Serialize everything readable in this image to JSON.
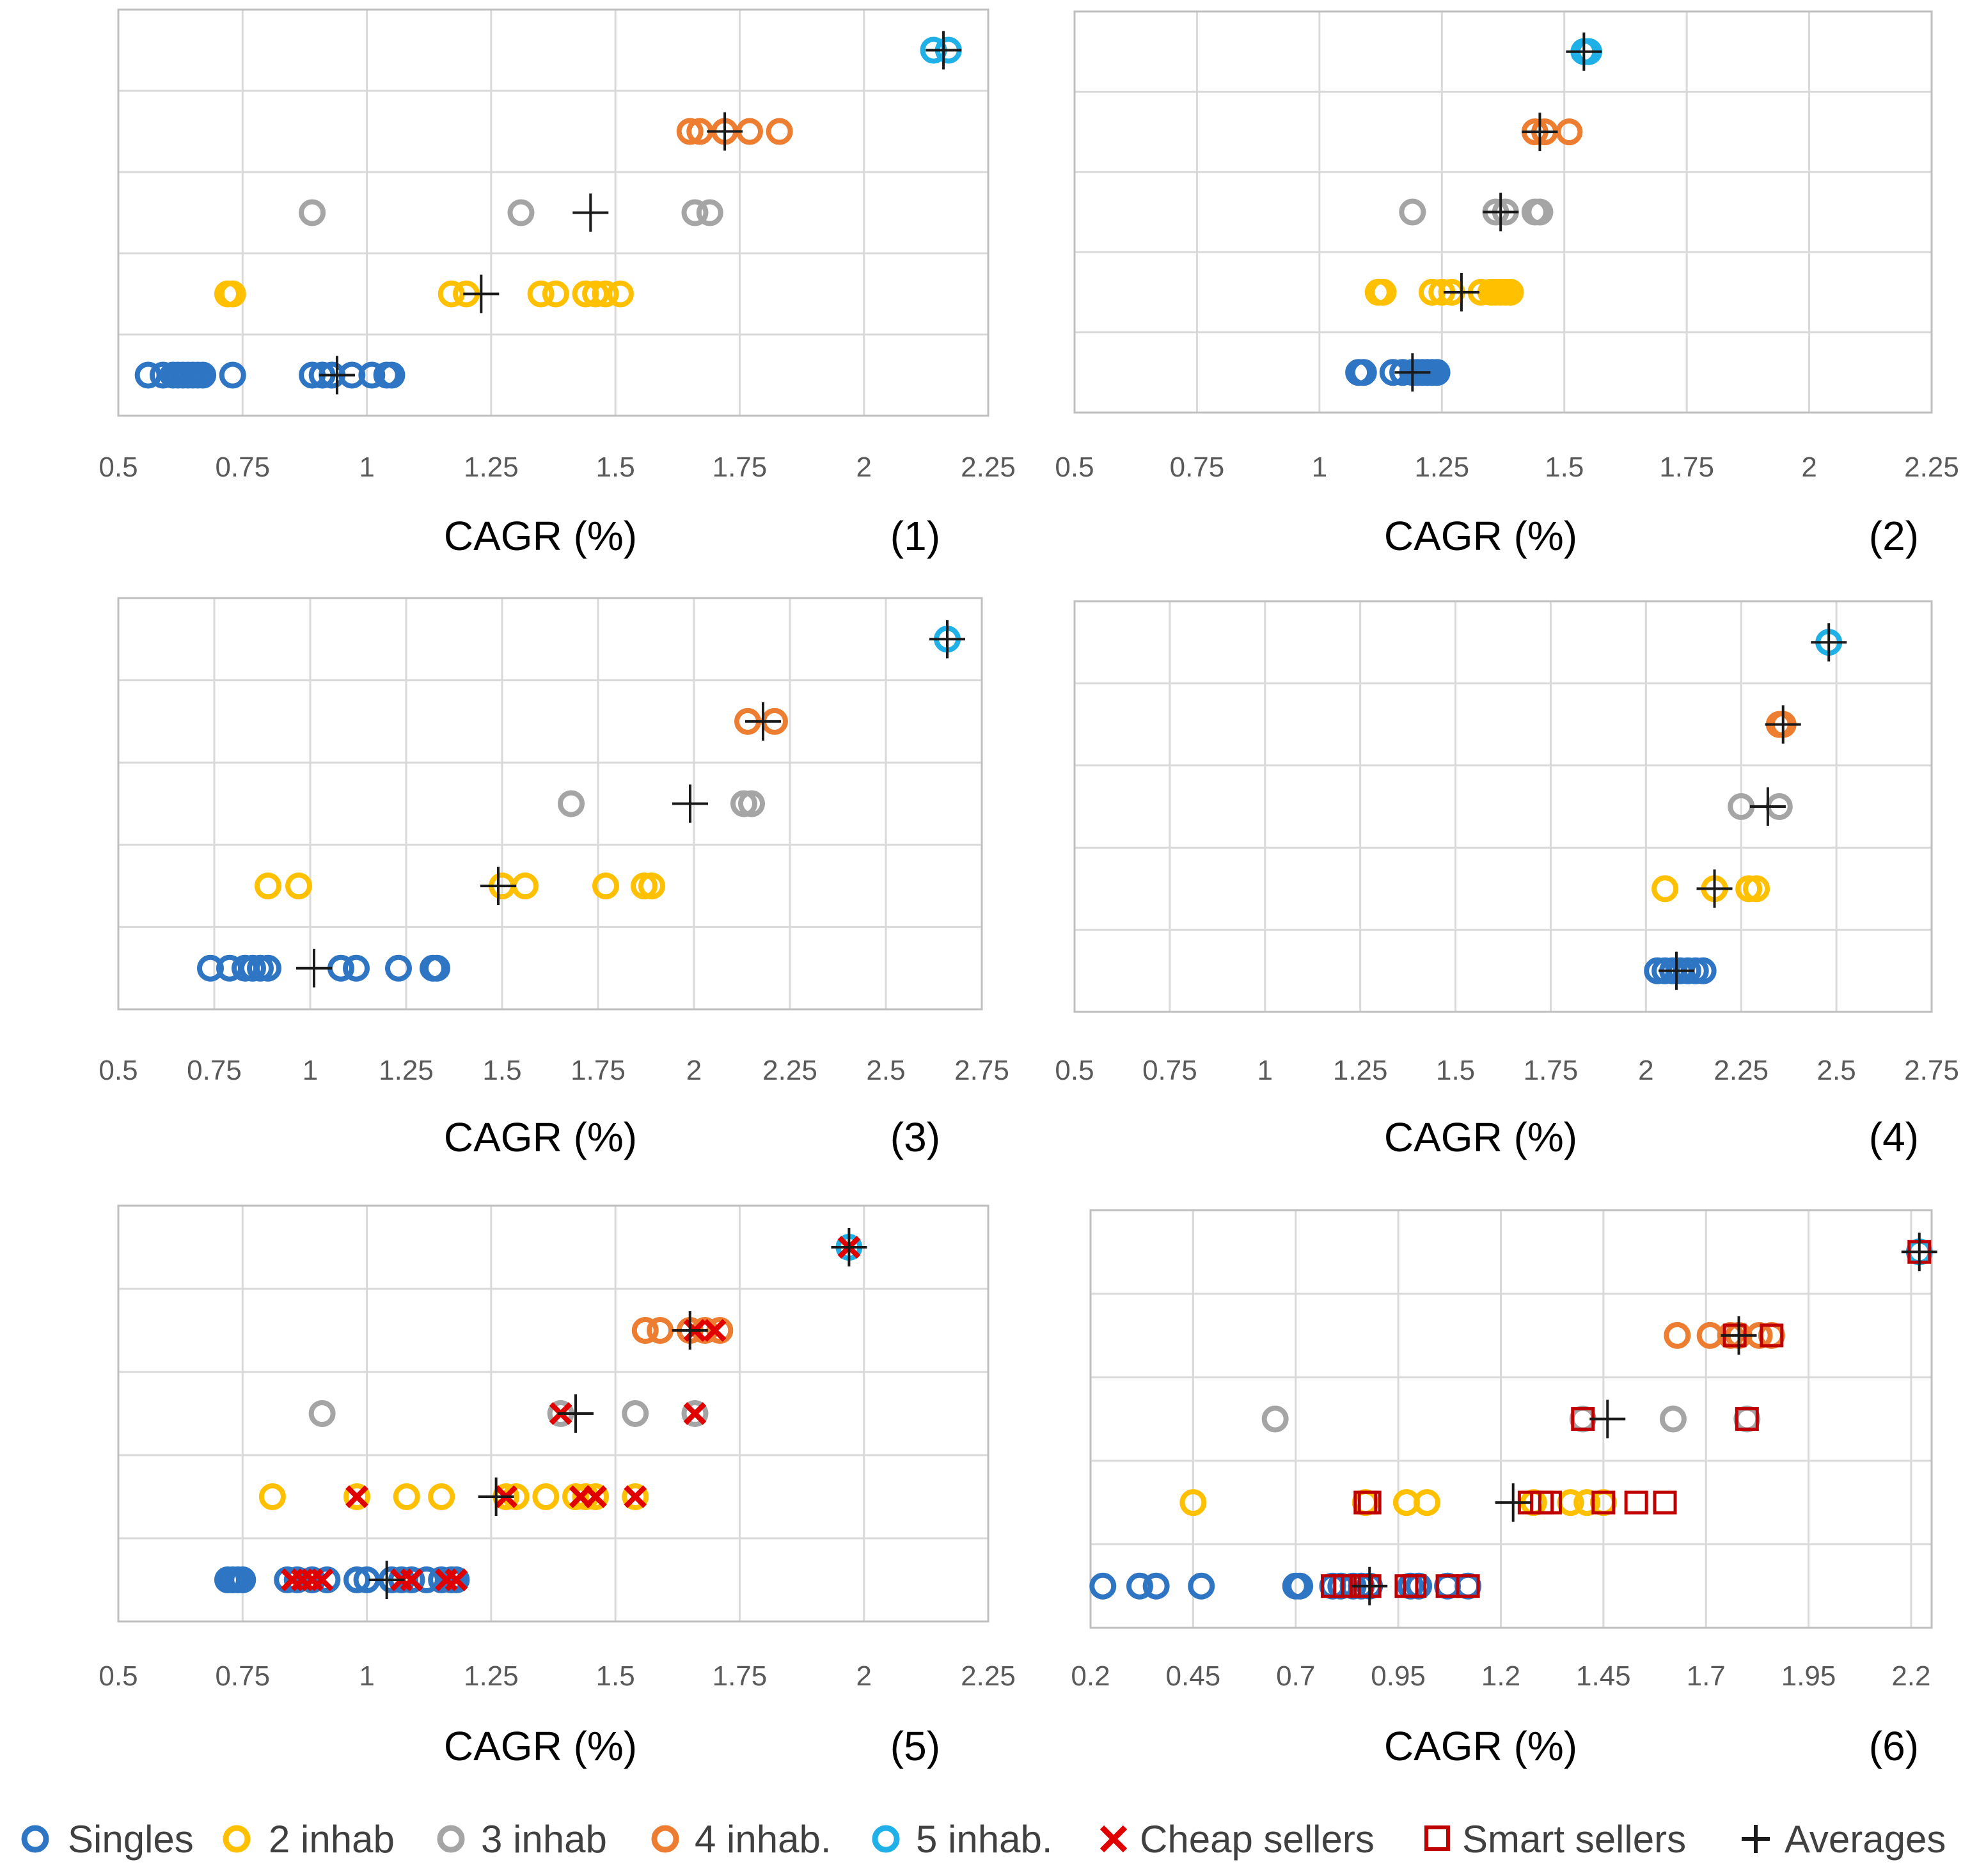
{
  "colors": {
    "singles": "#2e75c4",
    "inhab2": "#ffc000",
    "inhab3": "#a5a5a5",
    "inhab4": "#ed7d31",
    "inhab5": "#1eb0e6",
    "cheap": "#e00000",
    "smart": "#c00000",
    "averages": "#1a1a1a",
    "grid": "#d9d9d9",
    "plot_border": "#bfbfbf"
  },
  "legend": [
    {
      "key": "singles",
      "label": "Singles",
      "marker": "circle",
      "icon": "circle-icon"
    },
    {
      "key": "inhab2",
      "label": "2 inhab",
      "marker": "circle",
      "icon": "circle-icon"
    },
    {
      "key": "inhab3",
      "label": "3 inhab",
      "marker": "circle",
      "icon": "circle-icon"
    },
    {
      "key": "inhab4",
      "label": "4 inhab.",
      "marker": "circle",
      "icon": "circle-icon"
    },
    {
      "key": "inhab5",
      "label": "5 inhab.",
      "marker": "circle",
      "icon": "circle-icon"
    },
    {
      "key": "cheap",
      "label": "Cheap sellers",
      "marker": "x",
      "icon": "x-icon"
    },
    {
      "key": "smart",
      "label": "Smart sellers",
      "marker": "square",
      "icon": "square-icon"
    },
    {
      "key": "averages",
      "label": "Averages",
      "marker": "plus",
      "icon": "plus-icon"
    }
  ],
  "chart_data": [
    {
      "type": "scatter",
      "panel": "(1)",
      "xlabel": "CAGR (%)",
      "xlim": [
        0.5,
        2.25
      ],
      "xticks": [
        0.5,
        0.75,
        1,
        1.25,
        1.5,
        1.75,
        2,
        2.25
      ],
      "tick_labels": [
        "0.5",
        "0.75",
        "1",
        "1.25",
        "1.5",
        "1.75",
        "2",
        "2.25"
      ],
      "rows": 5,
      "series": [
        {
          "key": "singles",
          "row": 1,
          "values": [
            0.56,
            0.59,
            0.61,
            0.62,
            0.63,
            0.64,
            0.65,
            0.66,
            0.67,
            0.73,
            0.89,
            0.91,
            0.93,
            0.97,
            1.01,
            1.04,
            1.05
          ]
        },
        {
          "key": "inhab2",
          "row": 2,
          "values": [
            0.72,
            0.73,
            1.17,
            1.2,
            1.35,
            1.38,
            1.44,
            1.46,
            1.48,
            1.51
          ]
        },
        {
          "key": "inhab3",
          "row": 3,
          "values": [
            0.89,
            1.31,
            1.66,
            1.69
          ]
        },
        {
          "key": "inhab4",
          "row": 4,
          "values": [
            1.65,
            1.67,
            1.72,
            1.77,
            1.83
          ]
        },
        {
          "key": "inhab5",
          "row": 5,
          "values": [
            2.14,
            2.17
          ]
        },
        {
          "key": "averages",
          "row": 1,
          "values": [
            0.94
          ]
        },
        {
          "key": "averages",
          "row": 2,
          "values": [
            1.23
          ]
        },
        {
          "key": "averages",
          "row": 3,
          "values": [
            1.45
          ]
        },
        {
          "key": "averages",
          "row": 4,
          "values": [
            1.72
          ]
        },
        {
          "key": "averages",
          "row": 5,
          "values": [
            2.16
          ]
        }
      ]
    },
    {
      "type": "scatter",
      "panel": "(2)",
      "xlabel": "CAGR (%)",
      "xlim": [
        0.5,
        2.25
      ],
      "xticks": [
        0.5,
        0.75,
        1,
        1.25,
        1.5,
        1.75,
        2,
        2.25
      ],
      "tick_labels": [
        "0.5",
        "0.75",
        "1",
        "1.25",
        "1.5",
        "1.75",
        "2",
        "2.25"
      ],
      "rows": 5,
      "series": [
        {
          "key": "singles",
          "row": 1,
          "values": [
            1.08,
            1.09,
            1.15,
            1.17,
            1.19,
            1.2,
            1.21,
            1.22,
            1.23,
            1.24
          ]
        },
        {
          "key": "inhab2",
          "row": 2,
          "values": [
            1.12,
            1.13,
            1.23,
            1.25,
            1.27,
            1.33,
            1.35,
            1.36,
            1.37,
            1.38,
            1.39
          ]
        },
        {
          "key": "inhab3",
          "row": 3,
          "values": [
            1.19,
            1.36,
            1.38,
            1.44,
            1.45
          ]
        },
        {
          "key": "inhab4",
          "row": 4,
          "values": [
            1.44,
            1.46,
            1.51
          ]
        },
        {
          "key": "inhab5",
          "row": 5,
          "values": [
            1.54,
            1.55
          ]
        },
        {
          "key": "averages",
          "row": 1,
          "values": [
            1.19
          ]
        },
        {
          "key": "averages",
          "row": 2,
          "values": [
            1.29
          ]
        },
        {
          "key": "averages",
          "row": 3,
          "values": [
            1.37
          ]
        },
        {
          "key": "averages",
          "row": 4,
          "values": [
            1.45
          ]
        },
        {
          "key": "averages",
          "row": 5,
          "values": [
            1.54
          ]
        }
      ]
    },
    {
      "type": "scatter",
      "panel": "(3)",
      "xlabel": "CAGR (%)",
      "xlim": [
        0.5,
        2.75
      ],
      "xticks": [
        0.5,
        0.75,
        1,
        1.25,
        1.5,
        1.75,
        2,
        2.25,
        2.5,
        2.75
      ],
      "tick_labels": [
        "0.5",
        "0.75",
        "1",
        "1.25",
        "1.5",
        "1.75",
        "2",
        "2.25",
        "2.5",
        "2.75"
      ],
      "rows": 5,
      "series": [
        {
          "key": "singles",
          "row": 1,
          "values": [
            0.74,
            0.79,
            0.83,
            0.85,
            0.87,
            0.89,
            1.08,
            1.12,
            1.23,
            1.32,
            1.33
          ]
        },
        {
          "key": "inhab2",
          "row": 2,
          "values": [
            0.89,
            0.97,
            1.5,
            1.56,
            1.77,
            1.87,
            1.89
          ]
        },
        {
          "key": "inhab3",
          "row": 3,
          "values": [
            1.68,
            2.13,
            2.15
          ]
        },
        {
          "key": "inhab4",
          "row": 4,
          "values": [
            2.14,
            2.21
          ]
        },
        {
          "key": "inhab5",
          "row": 5,
          "values": [
            2.66
          ]
        },
        {
          "key": "averages",
          "row": 1,
          "values": [
            1.01
          ]
        },
        {
          "key": "averages",
          "row": 2,
          "values": [
            1.49
          ]
        },
        {
          "key": "averages",
          "row": 3,
          "values": [
            1.99
          ]
        },
        {
          "key": "averages",
          "row": 4,
          "values": [
            2.18
          ]
        },
        {
          "key": "averages",
          "row": 5,
          "values": [
            2.66
          ]
        }
      ]
    },
    {
      "type": "scatter",
      "panel": "(4)",
      "xlabel": "CAGR (%)",
      "xlim": [
        0.5,
        2.75
      ],
      "xticks": [
        0.5,
        0.75,
        1,
        1.25,
        1.5,
        1.75,
        2,
        2.25,
        2.5,
        2.75
      ],
      "tick_labels": [
        "0.5",
        "0.75",
        "1",
        "1.25",
        "1.5",
        "1.75",
        "2",
        "2.25",
        "2.5",
        "2.75"
      ],
      "rows": 5,
      "series": [
        {
          "key": "singles",
          "row": 1,
          "values": [
            2.03,
            2.05,
            2.07,
            2.09,
            2.11,
            2.13,
            2.15
          ]
        },
        {
          "key": "inhab2",
          "row": 2,
          "values": [
            2.05,
            2.18,
            2.27,
            2.29
          ]
        },
        {
          "key": "inhab3",
          "row": 3,
          "values": [
            2.25,
            2.35
          ]
        },
        {
          "key": "inhab4",
          "row": 4,
          "values": [
            2.35,
            2.36
          ]
        },
        {
          "key": "inhab5",
          "row": 5,
          "values": [
            2.48
          ]
        },
        {
          "key": "averages",
          "row": 1,
          "values": [
            2.08
          ]
        },
        {
          "key": "averages",
          "row": 2,
          "values": [
            2.18
          ]
        },
        {
          "key": "averages",
          "row": 3,
          "values": [
            2.32
          ]
        },
        {
          "key": "averages",
          "row": 4,
          "values": [
            2.36
          ]
        },
        {
          "key": "averages",
          "row": 5,
          "values": [
            2.48
          ]
        }
      ]
    },
    {
      "type": "scatter",
      "panel": "(5)",
      "xlabel": "CAGR (%)",
      "xlim": [
        0.5,
        2.25
      ],
      "xticks": [
        0.5,
        0.75,
        1,
        1.25,
        1.5,
        1.75,
        2,
        2.25
      ],
      "tick_labels": [
        "0.5",
        "0.75",
        "1",
        "1.25",
        "1.5",
        "1.75",
        "2",
        "2.25"
      ],
      "rows": 5,
      "series": [
        {
          "key": "singles",
          "row": 1,
          "values": [
            0.72,
            0.73,
            0.74,
            0.75,
            0.84,
            0.86,
            0.89,
            0.92,
            0.98,
            1.0,
            1.05,
            1.07,
            1.09,
            1.12,
            1.15,
            1.17,
            1.18
          ]
        },
        {
          "key": "cheap",
          "row": 1,
          "values": [
            0.85,
            0.87,
            0.89,
            0.91,
            1.07,
            1.09,
            1.16,
            1.18
          ]
        },
        {
          "key": "inhab2",
          "row": 2,
          "values": [
            0.81,
            0.98,
            1.08,
            1.15,
            1.28,
            1.3,
            1.36,
            1.42,
            1.44,
            1.46,
            1.54
          ]
        },
        {
          "key": "cheap",
          "row": 2,
          "values": [
            0.98,
            1.28,
            1.43,
            1.46,
            1.54
          ]
        },
        {
          "key": "inhab3",
          "row": 3,
          "values": [
            0.91,
            1.39,
            1.54,
            1.66
          ]
        },
        {
          "key": "cheap",
          "row": 3,
          "values": [
            1.39,
            1.66
          ]
        },
        {
          "key": "inhab4",
          "row": 4,
          "values": [
            1.56,
            1.59,
            1.65,
            1.68,
            1.71
          ]
        },
        {
          "key": "cheap",
          "row": 4,
          "values": [
            1.66,
            1.7
          ]
        },
        {
          "key": "inhab5",
          "row": 5,
          "values": [
            1.97
          ]
        },
        {
          "key": "cheap",
          "row": 5,
          "values": [
            1.97
          ]
        },
        {
          "key": "averages",
          "row": 1,
          "values": [
            1.04
          ]
        },
        {
          "key": "averages",
          "row": 2,
          "values": [
            1.26
          ]
        },
        {
          "key": "averages",
          "row": 3,
          "values": [
            1.42
          ]
        },
        {
          "key": "averages",
          "row": 4,
          "values": [
            1.65
          ]
        },
        {
          "key": "averages",
          "row": 5,
          "values": [
            1.97
          ]
        }
      ]
    },
    {
      "type": "scatter",
      "panel": "(6)",
      "xlabel": "CAGR (%)",
      "xlim": [
        0.2,
        2.25
      ],
      "xticks": [
        0.2,
        0.45,
        0.7,
        0.95,
        1.2,
        1.45,
        1.7,
        1.95,
        2.2
      ],
      "tick_labels": [
        "0.2",
        "0.45",
        "0.7",
        "0.95",
        "1.2",
        "1.45",
        "1.7",
        "1.95",
        "2.2"
      ],
      "rows": 5,
      "series": [
        {
          "key": "singles",
          "row": 1,
          "values": [
            0.23,
            0.32,
            0.36,
            0.47,
            0.7,
            0.71,
            0.79,
            0.81,
            0.84,
            0.86,
            0.88,
            0.98,
            1.0,
            1.07,
            1.12
          ]
        },
        {
          "key": "smart",
          "row": 1,
          "values": [
            0.79,
            0.82,
            0.86,
            0.88,
            0.97,
            0.99,
            1.07,
            1.12
          ]
        },
        {
          "key": "inhab2",
          "row": 2,
          "values": [
            0.45,
            0.87,
            0.97,
            1.02,
            1.28,
            1.37,
            1.41,
            1.45
          ]
        },
        {
          "key": "smart",
          "row": 2,
          "values": [
            0.87,
            0.88,
            1.27,
            1.3,
            1.32,
            1.45,
            1.53,
            1.6
          ]
        },
        {
          "key": "inhab3",
          "row": 3,
          "values": [
            0.65,
            1.4,
            1.62,
            1.8
          ]
        },
        {
          "key": "smart",
          "row": 3,
          "values": [
            1.4,
            1.8
          ]
        },
        {
          "key": "inhab4",
          "row": 4,
          "values": [
            1.63,
            1.71,
            1.76,
            1.78,
            1.83,
            1.86
          ]
        },
        {
          "key": "smart",
          "row": 4,
          "values": [
            1.77,
            1.86
          ]
        },
        {
          "key": "inhab5",
          "row": 5,
          "values": [
            2.22
          ]
        },
        {
          "key": "smart",
          "row": 5,
          "values": [
            2.22
          ]
        },
        {
          "key": "averages",
          "row": 1,
          "values": [
            0.88
          ]
        },
        {
          "key": "averages",
          "row": 2,
          "values": [
            1.23
          ]
        },
        {
          "key": "averages",
          "row": 3,
          "values": [
            1.46
          ]
        },
        {
          "key": "averages",
          "row": 4,
          "values": [
            1.78
          ]
        },
        {
          "key": "averages",
          "row": 5,
          "values": [
            2.22
          ]
        }
      ]
    }
  ]
}
